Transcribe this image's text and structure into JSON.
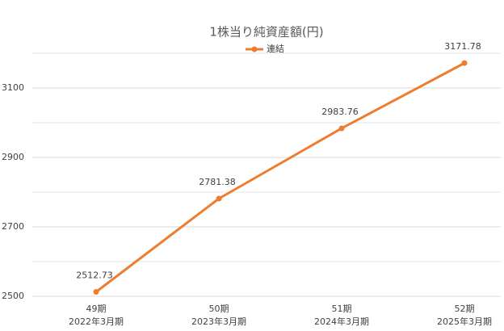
{
  "chart_data": {
    "type": "line",
    "title": "1株当り純資産額(円)",
    "categories": [
      [
        "49期",
        "2022年3月期"
      ],
      [
        "50期",
        "2023年3月期"
      ],
      [
        "51期",
        "2024年3月期"
      ],
      [
        "52期",
        "2025年3月期"
      ]
    ],
    "series": [
      {
        "name": "連結",
        "color": "#ed7d31",
        "values": [
          2512.73,
          2781.38,
          2983.76,
          3171.78
        ]
      }
    ],
    "ylim": [
      2500,
      3200
    ],
    "yticks": [
      2500,
      2700,
      2900,
      3100
    ],
    "minor_grid": [
      2600,
      2800,
      3000,
      3200
    ],
    "grid": true,
    "legend": "top",
    "data_labels": true
  }
}
